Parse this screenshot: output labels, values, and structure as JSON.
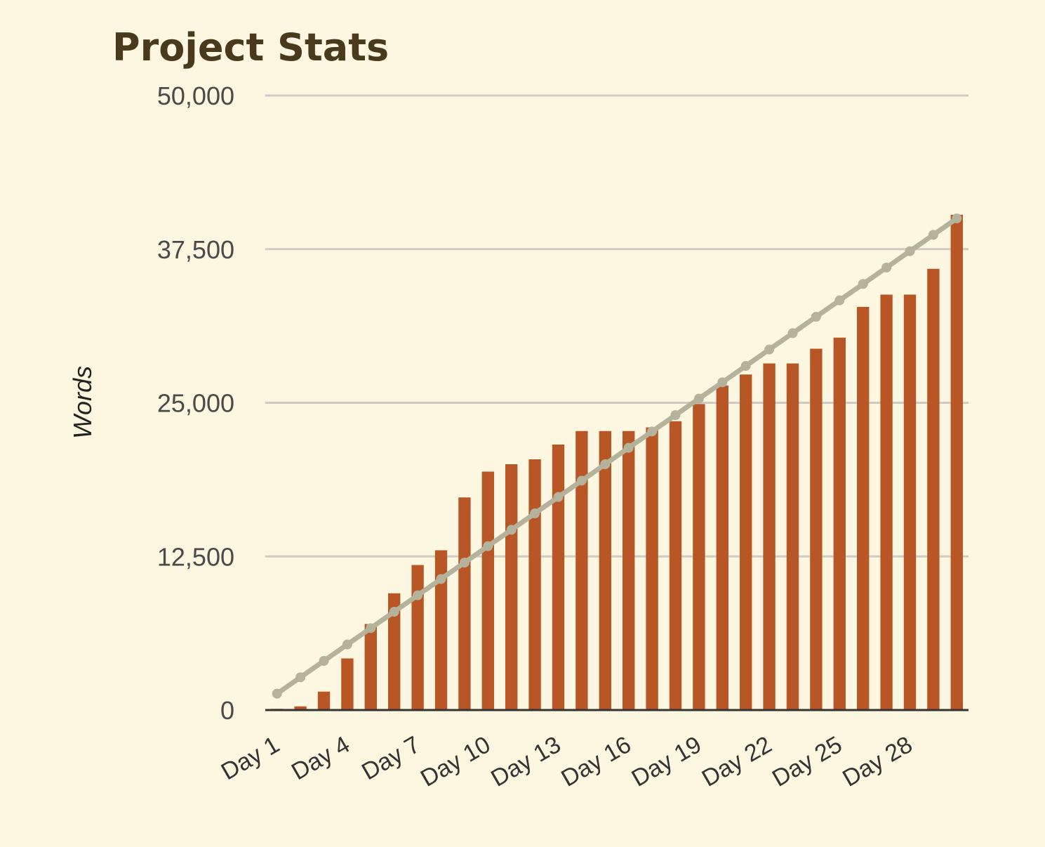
{
  "chart_data": {
    "type": "bar",
    "title": "Project Stats",
    "ylabel": "Words",
    "xlabel": "",
    "ylim": [
      0,
      50000
    ],
    "yticks": [
      "0",
      "12,500",
      "25,000",
      "37,500",
      "50,000"
    ],
    "ytick_values": [
      0,
      12500,
      25000,
      37500,
      50000
    ],
    "grid": true,
    "legend": "none",
    "categories": [
      "Day 1",
      "Day 2",
      "Day 3",
      "Day 4",
      "Day 5",
      "Day 6",
      "Day 7",
      "Day 8",
      "Day 9",
      "Day 10",
      "Day 11",
      "Day 12",
      "Day 13",
      "Day 14",
      "Day 15",
      "Day 16",
      "Day 17",
      "Day 18",
      "Day 19",
      "Day 20",
      "Day 21",
      "Day 22",
      "Day 23",
      "Day 24",
      "Day 25",
      "Day 26",
      "Day 27",
      "Day 28",
      "Day 29",
      "Day 30"
    ],
    "xtick_labels_shown": [
      "Day 1",
      "Day 4",
      "Day 7",
      "Day 10",
      "Day 13",
      "Day 16",
      "Day 19",
      "Day 22",
      "Day 25",
      "Day 28"
    ],
    "series": [
      {
        "type": "bar",
        "color": "#b85626",
        "values": [
          100,
          300,
          1500,
          4200,
          7000,
          9500,
          11800,
          13000,
          17300,
          19400,
          20000,
          20400,
          21600,
          22700,
          22700,
          22700,
          23000,
          23500,
          24900,
          26400,
          27300,
          28200,
          28200,
          29400,
          30300,
          32800,
          33800,
          33800,
          35900,
          40300
        ]
      },
      {
        "type": "line",
        "color": "#b5b29c",
        "values": [
          1333,
          2667,
          4000,
          5333,
          6667,
          8000,
          9333,
          10667,
          12000,
          13333,
          14667,
          16000,
          17333,
          18667,
          20000,
          21333,
          22667,
          24000,
          25333,
          26667,
          28000,
          29333,
          30667,
          32000,
          33333,
          34667,
          36000,
          37333,
          38667,
          40000
        ]
      }
    ]
  },
  "colors": {
    "background": "#fdf6e0",
    "gridline": "#cfcbc3",
    "axis": "#333333",
    "title": "#4a3a1c"
  }
}
